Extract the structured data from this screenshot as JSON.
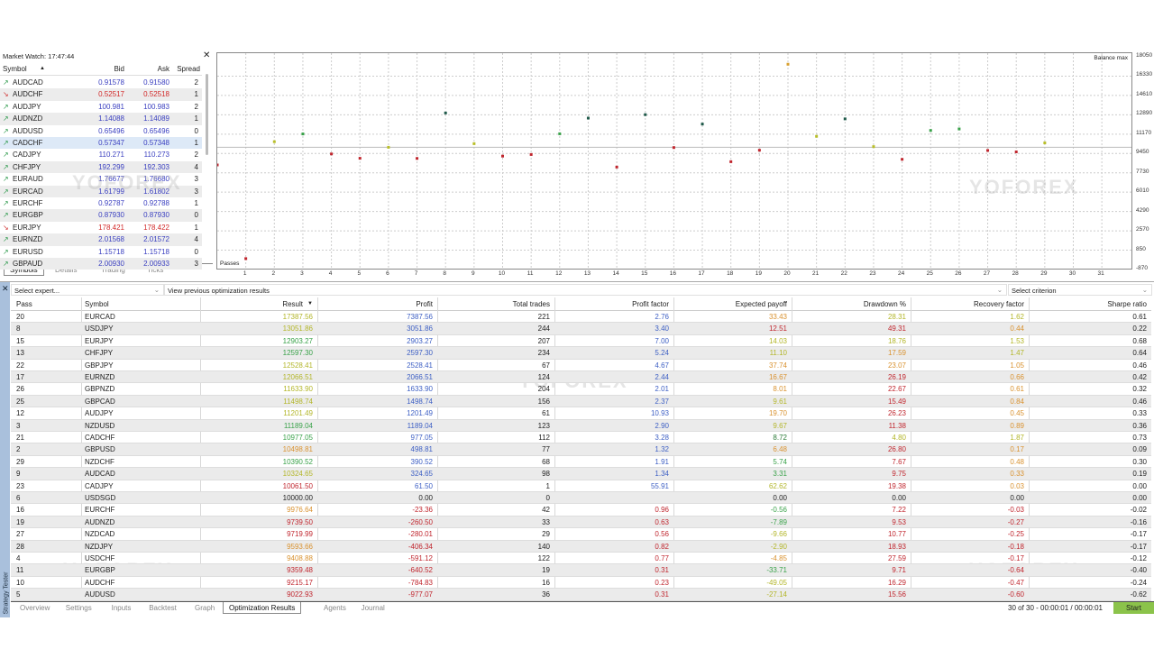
{
  "market_watch": {
    "title": "Market Watch: 17:47:44",
    "columns": {
      "symbol": "Symbol",
      "bid": "Bid",
      "ask": "Ask",
      "spread": "Spread"
    },
    "sort_icon": "sort-up-triangle",
    "rows": [
      {
        "symbol": "AUDCAD",
        "bid": "0.91578",
        "ask": "0.91580",
        "spread": "2",
        "dir": "up"
      },
      {
        "symbol": "AUDCHF",
        "bid": "0.52517",
        "ask": "0.52518",
        "spread": "1",
        "dir": "down"
      },
      {
        "symbol": "AUDJPY",
        "bid": "100.981",
        "ask": "100.983",
        "spread": "2",
        "dir": "up"
      },
      {
        "symbol": "AUDNZD",
        "bid": "1.14088",
        "ask": "1.14089",
        "spread": "1",
        "dir": "up"
      },
      {
        "symbol": "AUDUSD",
        "bid": "0.65496",
        "ask": "0.65496",
        "spread": "0",
        "dir": "up"
      },
      {
        "symbol": "CADCHF",
        "bid": "0.57347",
        "ask": "0.57348",
        "spread": "1",
        "dir": "up",
        "selected": true
      },
      {
        "symbol": "CADJPY",
        "bid": "110.271",
        "ask": "110.273",
        "spread": "2",
        "dir": "up"
      },
      {
        "symbol": "CHFJPY",
        "bid": "192.299",
        "ask": "192.303",
        "spread": "4",
        "dir": "up"
      },
      {
        "symbol": "EURAUD",
        "bid": "1.76677",
        "ask": "1.76680",
        "spread": "3",
        "dir": "up"
      },
      {
        "symbol": "EURCAD",
        "bid": "1.61799",
        "ask": "1.61802",
        "spread": "3",
        "dir": "up"
      },
      {
        "symbol": "EURCHF",
        "bid": "0.92787",
        "ask": "0.92788",
        "spread": "1",
        "dir": "up"
      },
      {
        "symbol": "EURGBP",
        "bid": "0.87930",
        "ask": "0.87930",
        "spread": "0",
        "dir": "up"
      },
      {
        "symbol": "EURJPY",
        "bid": "178.421",
        "ask": "178.422",
        "spread": "1",
        "dir": "down"
      },
      {
        "symbol": "EURNZD",
        "bid": "2.01568",
        "ask": "2.01572",
        "spread": "4",
        "dir": "up"
      },
      {
        "symbol": "EURUSD",
        "bid": "1.15718",
        "ask": "1.15718",
        "spread": "0",
        "dir": "up"
      },
      {
        "symbol": "GBPAUD",
        "bid": "2.00930",
        "ask": "2.00933",
        "spread": "3",
        "dir": "up"
      }
    ],
    "tabs": [
      "Symbols",
      "Details",
      "Trading",
      "Ticks"
    ],
    "active_tab": 0
  },
  "chart": {
    "legend": "Balance max",
    "x_label": "Passes",
    "y_ticks": [
      "18050",
      "16330",
      "14610",
      "12890",
      "11170",
      "9450",
      "7730",
      "6010",
      "4290",
      "2570",
      "850",
      "-870"
    ],
    "x_ticks": [
      "1",
      "2",
      "3",
      "4",
      "5",
      "6",
      "7",
      "8",
      "9",
      "10",
      "11",
      "12",
      "13",
      "14",
      "15",
      "16",
      "17",
      "18",
      "19",
      "20",
      "21",
      "22",
      "23",
      "24",
      "25",
      "26",
      "27",
      "28",
      "29",
      "30",
      "31"
    ]
  },
  "chart_data": {
    "type": "scatter",
    "title": "",
    "xlabel": "Passes",
    "ylabel": "",
    "legend": "Balance max",
    "xlim": [
      0,
      32
    ],
    "ylim": [
      -870,
      18050
    ],
    "grid": true,
    "reference_line": 10000,
    "colors": {
      "red": "#c0262e",
      "yellow": "#b9bf2a",
      "green": "#3aa24a",
      "teal": "#1f5a4a",
      "orange": "#d9a030"
    },
    "points": [
      {
        "x": 0,
        "y": 8430,
        "c": "red"
      },
      {
        "x": 1,
        "y": 100,
        "c": "red"
      },
      {
        "x": 2,
        "y": 10498.81,
        "c": "yellow"
      },
      {
        "x": 3,
        "y": 11189.04,
        "c": "green"
      },
      {
        "x": 4,
        "y": 9408.88,
        "c": "red"
      },
      {
        "x": 5,
        "y": 9022.93,
        "c": "red"
      },
      {
        "x": 6,
        "y": 10000,
        "c": "yellow"
      },
      {
        "x": 7,
        "y": 9010,
        "c": "red"
      },
      {
        "x": 8,
        "y": 13051.86,
        "c": "teal"
      },
      {
        "x": 9,
        "y": 10324.65,
        "c": "yellow"
      },
      {
        "x": 10,
        "y": 9215.17,
        "c": "red"
      },
      {
        "x": 11,
        "y": 9359.48,
        "c": "red"
      },
      {
        "x": 12,
        "y": 11201.49,
        "c": "green"
      },
      {
        "x": 13,
        "y": 12597.3,
        "c": "teal"
      },
      {
        "x": 14,
        "y": 8240,
        "c": "red"
      },
      {
        "x": 15,
        "y": 12903.27,
        "c": "teal"
      },
      {
        "x": 16,
        "y": 9976.64,
        "c": "red"
      },
      {
        "x": 17,
        "y": 12066.51,
        "c": "teal"
      },
      {
        "x": 18,
        "y": 8720,
        "c": "red"
      },
      {
        "x": 19,
        "y": 9739.5,
        "c": "red"
      },
      {
        "x": 20,
        "y": 17387.56,
        "c": "orange"
      },
      {
        "x": 21,
        "y": 10977.05,
        "c": "yellow"
      },
      {
        "x": 22,
        "y": 12528.41,
        "c": "teal"
      },
      {
        "x": 23,
        "y": 10061.5,
        "c": "yellow"
      },
      {
        "x": 24,
        "y": 8930,
        "c": "red"
      },
      {
        "x": 25,
        "y": 11498.74,
        "c": "green"
      },
      {
        "x": 26,
        "y": 11633.9,
        "c": "green"
      },
      {
        "x": 27,
        "y": 9719.99,
        "c": "red"
      },
      {
        "x": 28,
        "y": 9593.66,
        "c": "red"
      },
      {
        "x": 29,
        "y": 10390.52,
        "c": "yellow"
      }
    ]
  },
  "tester": {
    "side_label": "Strategy Tester",
    "expert_placeholder": "Select expert...",
    "view_previous": "View previous optimization results",
    "criterion_placeholder": "Select criterion",
    "columns": [
      "Pass",
      "Symbol",
      "Result",
      "Profit",
      "Total trades",
      "Profit factor",
      "Expected payoff",
      "Drawdown %",
      "Recovery factor",
      "Sharpe ratio"
    ],
    "sort_column": "Result",
    "rows": [
      {
        "v": [
          "20",
          "EURCAD",
          "17387.56",
          "7387.56",
          "221",
          "2.76",
          "33.43",
          "28.31",
          "1.62",
          "0.61"
        ],
        "c": [
          "y",
          "b",
          "b",
          "b",
          "o",
          "y",
          "y"
        ]
      },
      {
        "v": [
          "8",
          "USDJPY",
          "13051.86",
          "3051.86",
          "244",
          "3.40",
          "12.51",
          "49.31",
          "0.44",
          "0.22"
        ],
        "c": [
          "y",
          "b",
          "b",
          "b",
          "r",
          "r",
          "o"
        ]
      },
      {
        "v": [
          "15",
          "EURJPY",
          "12903.27",
          "2903.27",
          "207",
          "7.00",
          "14.03",
          "18.76",
          "1.53",
          "0.68"
        ],
        "c": [
          "g",
          "b",
          "b",
          "b",
          "y",
          "y",
          "y"
        ]
      },
      {
        "v": [
          "13",
          "CHFJPY",
          "12597.30",
          "2597.30",
          "234",
          "5.24",
          "11.10",
          "17.59",
          "1.47",
          "0.64"
        ],
        "c": [
          "g",
          "b",
          "b",
          "b",
          "y",
          "o",
          "y"
        ]
      },
      {
        "v": [
          "22",
          "GBPJPY",
          "12528.41",
          "2528.41",
          "67",
          "4.67",
          "37.74",
          "23.07",
          "1.05",
          "0.46"
        ],
        "c": [
          "y",
          "b",
          "b",
          "b",
          "o",
          "o",
          "o"
        ]
      },
      {
        "v": [
          "17",
          "EURNZD",
          "12066.51",
          "2066.51",
          "124",
          "2.44",
          "16.67",
          "26.19",
          "0.66",
          "0.42"
        ],
        "c": [
          "y",
          "b",
          "b",
          "b",
          "o",
          "r",
          "o"
        ]
      },
      {
        "v": [
          "26",
          "GBPNZD",
          "11633.90",
          "1633.90",
          "204",
          "2.01",
          "8.01",
          "22.67",
          "0.61",
          "0.32"
        ],
        "c": [
          "y",
          "b",
          "b",
          "b",
          "o",
          "r",
          "o"
        ]
      },
      {
        "v": [
          "25",
          "GBPCAD",
          "11498.74",
          "1498.74",
          "156",
          "2.37",
          "9.61",
          "15.49",
          "0.84",
          "0.46"
        ],
        "c": [
          "y",
          "b",
          "b",
          "b",
          "y",
          "r",
          "o"
        ]
      },
      {
        "v": [
          "12",
          "AUDJPY",
          "11201.49",
          "1201.49",
          "61",
          "10.93",
          "19.70",
          "26.23",
          "0.45",
          "0.33"
        ],
        "c": [
          "y",
          "b",
          "b",
          "b",
          "o",
          "r",
          "o"
        ]
      },
      {
        "v": [
          "3",
          "NZDUSD",
          "11189.04",
          "1189.04",
          "123",
          "2.90",
          "9.67",
          "11.38",
          "0.89",
          "0.36"
        ],
        "c": [
          "g",
          "b",
          "b",
          "b",
          "y",
          "r",
          "o"
        ]
      },
      {
        "v": [
          "21",
          "CADCHF",
          "10977.05",
          "977.05",
          "112",
          "3.28",
          "8.72",
          "4.80",
          "1.87",
          "0.73"
        ],
        "c": [
          "g",
          "b",
          "b",
          "b",
          "dg",
          "y",
          "y"
        ]
      },
      {
        "v": [
          "2",
          "GBPUSD",
          "10498.81",
          "498.81",
          "77",
          "1.32",
          "6.48",
          "26.80",
          "0.17",
          "0.09"
        ],
        "c": [
          "o",
          "b",
          "b",
          "b",
          "o",
          "r",
          "o"
        ]
      },
      {
        "v": [
          "29",
          "NZDCHF",
          "10390.52",
          "390.52",
          "68",
          "1.91",
          "5.74",
          "7.67",
          "0.48",
          "0.30"
        ],
        "c": [
          "g",
          "b",
          "b",
          "b",
          "g",
          "r",
          "o"
        ]
      },
      {
        "v": [
          "9",
          "AUDCAD",
          "10324.65",
          "324.65",
          "98",
          "1.34",
          "3.31",
          "9.75",
          "0.33",
          "0.19"
        ],
        "c": [
          "y",
          "b",
          "b",
          "b",
          "g",
          "r",
          "o"
        ]
      },
      {
        "v": [
          "23",
          "CADJPY",
          "10061.50",
          "61.50",
          "1",
          "55.91",
          "62.62",
          "19.38",
          "0.03",
          "0.00"
        ],
        "c": [
          "r",
          "b",
          "b",
          "b",
          "y",
          "r",
          "o"
        ]
      },
      {
        "v": [
          "6",
          "USDSGD",
          "10000.00",
          "0.00",
          "0",
          "",
          "0.00",
          "0.00",
          "0.00",
          "0.00"
        ],
        "c": [
          "k",
          "k",
          "k",
          "k",
          "k",
          "k",
          "k"
        ]
      },
      {
        "v": [
          "16",
          "EURCHF",
          "9976.64",
          "-23.36",
          "42",
          "0.96",
          "-0.56",
          "7.22",
          "-0.03",
          "-0.02"
        ],
        "c": [
          "o",
          "r",
          "r",
          "r",
          "g",
          "r",
          "r"
        ]
      },
      {
        "v": [
          "19",
          "AUDNZD",
          "9739.50",
          "-260.50",
          "33",
          "0.63",
          "-7.89",
          "9.53",
          "-0.27",
          "-0.16"
        ],
        "c": [
          "r",
          "r",
          "r",
          "r",
          "g",
          "r",
          "r"
        ]
      },
      {
        "v": [
          "27",
          "NZDCAD",
          "9719.99",
          "-280.01",
          "29",
          "0.56",
          "-9.66",
          "10.77",
          "-0.25",
          "-0.17"
        ],
        "c": [
          "r",
          "r",
          "r",
          "r",
          "y",
          "r",
          "r"
        ]
      },
      {
        "v": [
          "28",
          "NZDJPY",
          "9593.66",
          "-406.34",
          "140",
          "0.82",
          "-2.90",
          "18.93",
          "-0.18",
          "-0.17"
        ],
        "c": [
          "o",
          "r",
          "r",
          "r",
          "y",
          "r",
          "r"
        ]
      },
      {
        "v": [
          "4",
          "USDCHF",
          "9408.88",
          "-591.12",
          "122",
          "0.77",
          "-4.85",
          "27.59",
          "-0.17",
          "-0.12"
        ],
        "c": [
          "o",
          "r",
          "r",
          "r",
          "o",
          "r",
          "r"
        ]
      },
      {
        "v": [
          "11",
          "EURGBP",
          "9359.48",
          "-640.52",
          "19",
          "0.31",
          "-33.71",
          "9.71",
          "-0.64",
          "-0.40"
        ],
        "c": [
          "r",
          "r",
          "r",
          "r",
          "g",
          "r",
          "r"
        ]
      },
      {
        "v": [
          "10",
          "AUDCHF",
          "9215.17",
          "-784.83",
          "16",
          "0.23",
          "-49.05",
          "16.29",
          "-0.47",
          "-0.24"
        ],
        "c": [
          "r",
          "r",
          "r",
          "r",
          "y",
          "r",
          "r"
        ]
      },
      {
        "v": [
          "5",
          "AUDUSD",
          "9022.93",
          "-977.07",
          "36",
          "0.31",
          "-27.14",
          "15.56",
          "-0.60",
          "-0.62"
        ],
        "c": [
          "r",
          "r",
          "r",
          "r",
          "y",
          "r",
          "r"
        ]
      }
    ],
    "tabs": [
      "Overview",
      "Settings",
      "Inputs",
      "Backtest",
      "Graph",
      "Optimization Results",
      "Agents",
      "Journal"
    ],
    "active_tab": 5,
    "status": "30 of 30  -  00:00:01 / 00:00:01",
    "start_label": "Start"
  },
  "watermark": "YOFOREX"
}
